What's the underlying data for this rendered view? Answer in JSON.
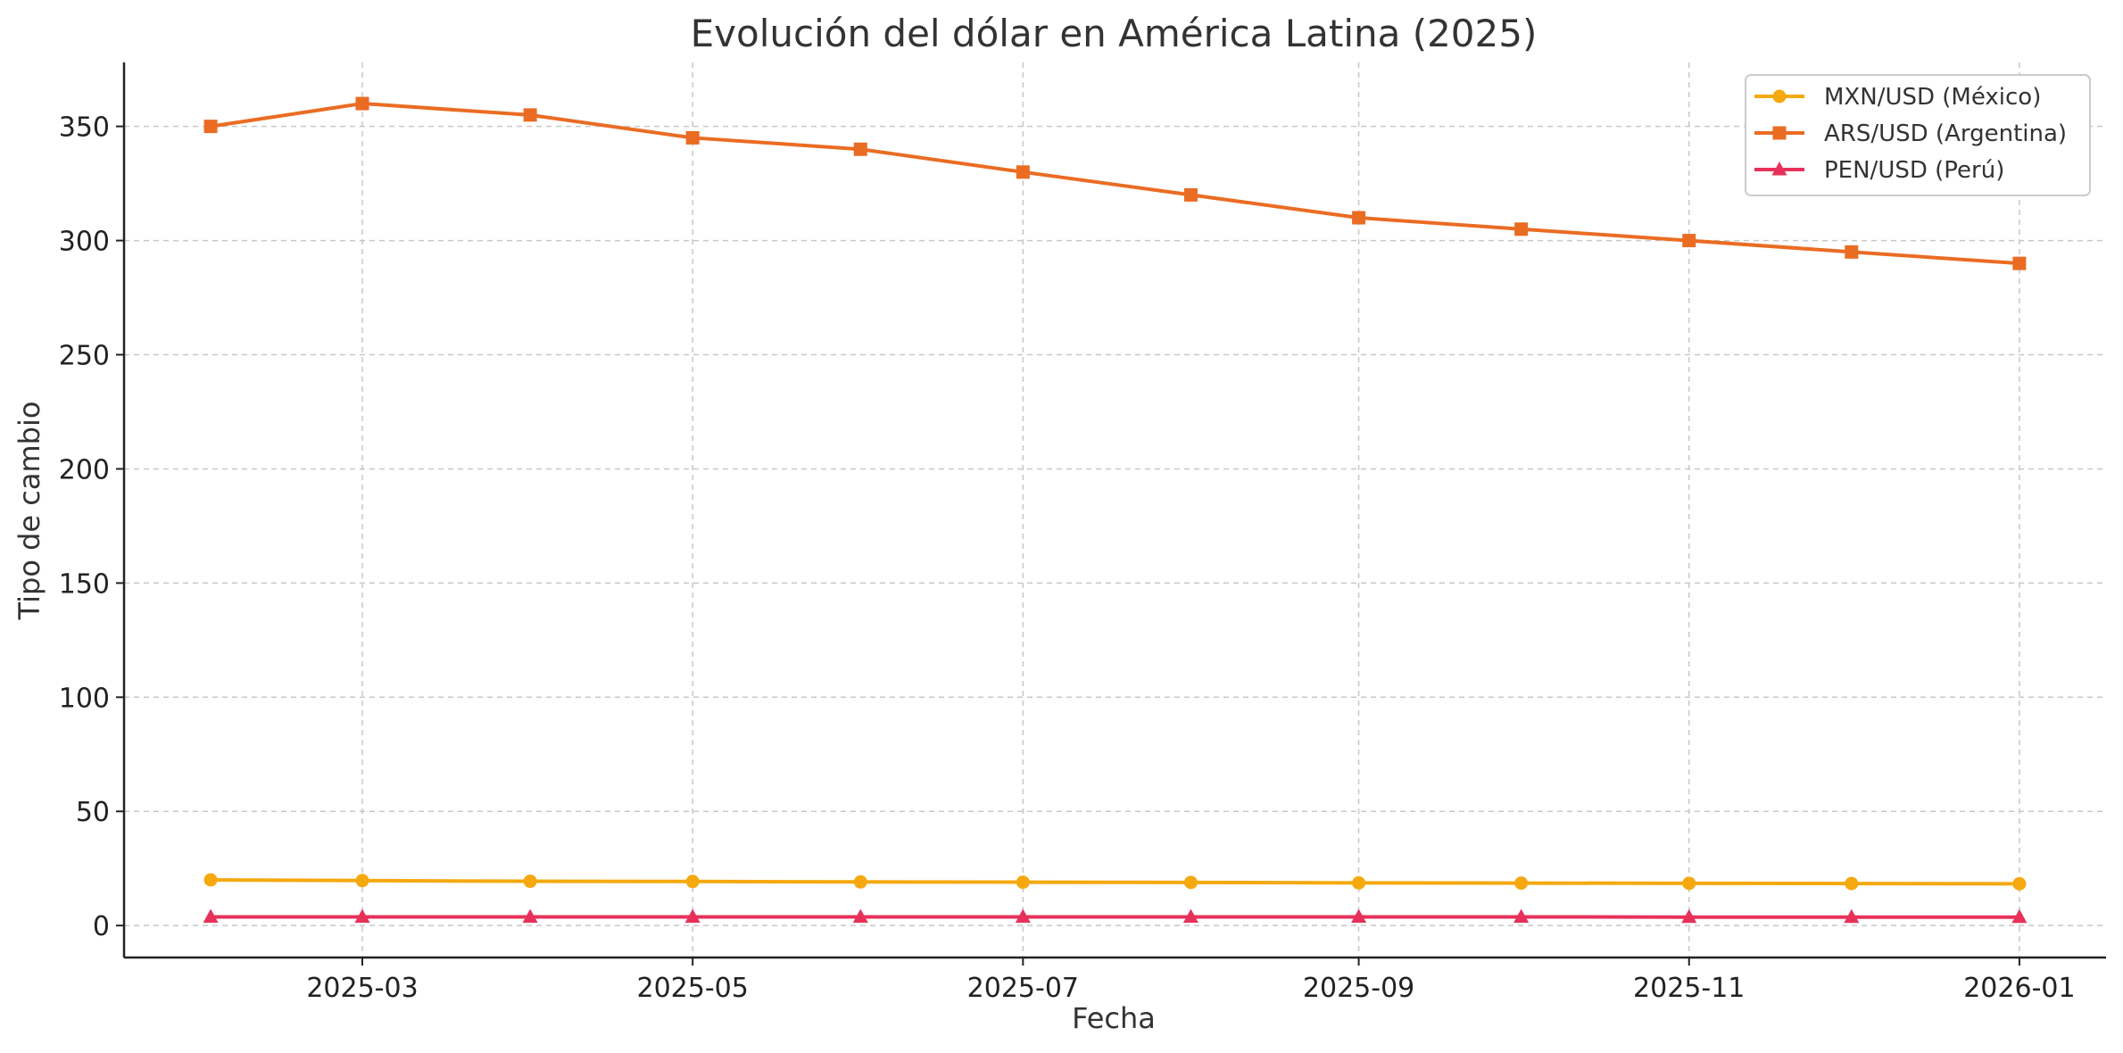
{
  "chart_data": {
    "type": "line",
    "title": "Evolución del dólar en América Latina (2025)",
    "xlabel": "Fecha",
    "ylabel": "Tipo de cambio",
    "x": [
      "2025-02-01",
      "2025-03-01",
      "2025-04-01",
      "2025-05-01",
      "2025-06-01",
      "2025-07-01",
      "2025-08-01",
      "2025-09-01",
      "2025-10-01",
      "2025-11-01",
      "2025-12-01",
      "2026-01-01"
    ],
    "x_ticks": [
      "2025-03",
      "2025-05",
      "2025-07",
      "2025-09",
      "2025-11",
      "2026-01"
    ],
    "x_range": [
      "2025-01-16",
      "2026-01-17"
    ],
    "y_ticks": [
      0,
      50,
      100,
      150,
      200,
      250,
      300,
      350
    ],
    "ylim": [
      -14,
      378
    ],
    "grid": true,
    "legend_position": "top-right",
    "series": [
      {
        "name": "MXN/USD (México)",
        "color": "#f5a90f",
        "marker": "circle",
        "values": [
          20.0,
          19.7,
          19.4,
          19.3,
          19.1,
          19.0,
          18.9,
          18.7,
          18.6,
          18.5,
          18.4,
          18.3
        ]
      },
      {
        "name": "ARS/USD (Argentina)",
        "color": "#ea6c23",
        "marker": "square",
        "values": [
          350,
          360,
          355,
          345,
          340,
          330,
          320,
          310,
          305,
          300,
          295,
          290
        ]
      },
      {
        "name": "PEN/USD (Perú)",
        "color": "#e8315a",
        "marker": "triangle",
        "values": [
          3.8,
          3.8,
          3.8,
          3.8,
          3.8,
          3.8,
          3.8,
          3.8,
          3.8,
          3.7,
          3.7,
          3.7
        ]
      }
    ]
  }
}
